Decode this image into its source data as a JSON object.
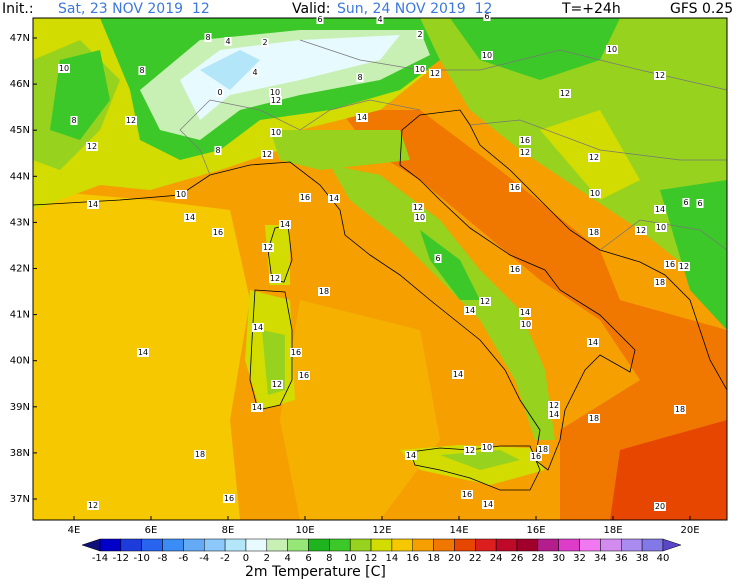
{
  "header": {
    "init_label": "Init.:",
    "init_value": "Sat, 23 NOV 2019  12",
    "valid_label": "Valid:",
    "valid_value": "Sun, 24 NOV 2019  12",
    "lead": "T=+24h",
    "model": "GFS 0.25"
  },
  "map": {
    "lat_labels": [
      "47N",
      "46N",
      "45N",
      "44N",
      "43N",
      "42N",
      "41N",
      "40N",
      "39N",
      "38N",
      "37N"
    ],
    "lon_labels": [
      "4E",
      "6E",
      "8E",
      "10E",
      "12E",
      "14E",
      "16E",
      "18E",
      "20E"
    ],
    "labels": [
      "8",
      "4",
      "2",
      "6",
      "2",
      "4",
      "6",
      "10",
      "8",
      "4",
      "0",
      "10",
      "12",
      "8",
      "10",
      "12",
      "10",
      "10",
      "12",
      "12",
      "8",
      "12",
      "12",
      "8",
      "12",
      "10",
      "14",
      "16",
      "12",
      "12",
      "10",
      "14",
      "14",
      "16",
      "14",
      "12",
      "10",
      "16",
      "14",
      "12",
      "6",
      "16",
      "12",
      "18",
      "12",
      "14",
      "14",
      "14",
      "10",
      "14",
      "16",
      "14",
      "14",
      "12",
      "16",
      "14",
      "12",
      "14",
      "18",
      "18",
      "18",
      "14",
      "10",
      "12",
      "18",
      "16",
      "16",
      "16",
      "14",
      "12",
      "20",
      "18",
      "16",
      "12",
      "18",
      "12",
      "10",
      "6",
      "6",
      "14",
      "10",
      "16"
    ]
  },
  "colorbar": {
    "title": "2m Temperature [C]",
    "ticks": [
      -14,
      -12,
      -10,
      -8,
      -6,
      -4,
      -2,
      0,
      2,
      4,
      6,
      8,
      10,
      12,
      14,
      16,
      18,
      20,
      22,
      24,
      26,
      28,
      30,
      32,
      34,
      36,
      38,
      40
    ],
    "colors": [
      "#10107a",
      "#0000c8",
      "#1e3cdc",
      "#2864f0",
      "#3c8cf5",
      "#64aaf5",
      "#8cc8fa",
      "#b4e6fa",
      "#e6faff",
      "#c8f0b4",
      "#96e678",
      "#1eb41e",
      "#3cc828",
      "#96d21e",
      "#d2dc00",
      "#f5c800",
      "#f5a000",
      "#f07800",
      "#e64600",
      "#dc1e1e",
      "#be0a28",
      "#a0002a",
      "#b41e8c",
      "#dc3cc8",
      "#f078f0",
      "#d28cf0",
      "#aa8cf0",
      "#8278e6",
      "#5a46c8"
    ]
  }
}
